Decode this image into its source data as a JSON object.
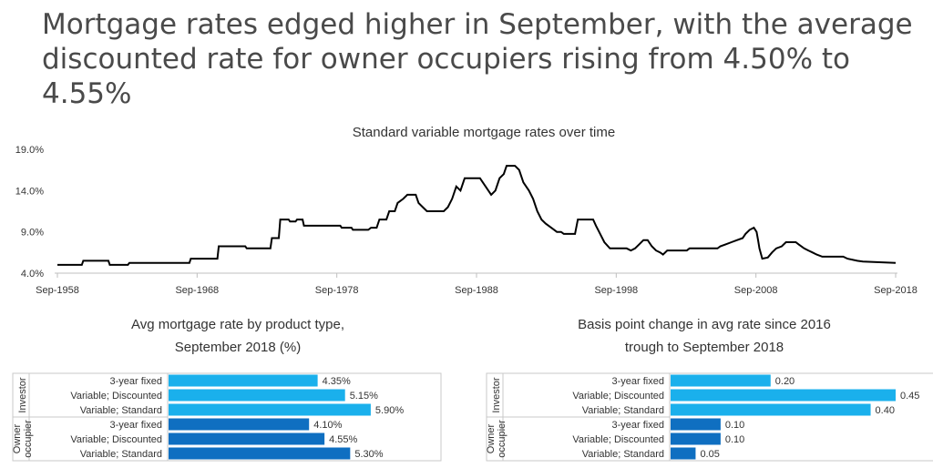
{
  "headline": "Mortgage rates edged higher in September, with the average discounted rate for owner occupiers rising from 4.50% to 4.55%",
  "chart_data": [
    {
      "type": "line",
      "title": "Standard variable mortgage rates over time",
      "x_ticks": [
        "Sep-1958",
        "Sep-1968",
        "Sep-1978",
        "Sep-1988",
        "Sep-1998",
        "Sep-2008",
        "Sep-2018"
      ],
      "y_ticks": [
        "4.0%",
        "9.0%",
        "14.0%",
        "19.0%"
      ],
      "ylim": [
        4.0,
        19.0
      ],
      "xlim": [
        1958.75,
        2018.75
      ],
      "grid": false,
      "color": "#000000",
      "series": [
        {
          "points": [
            [
              1958.75,
              5.0
            ],
            [
              1960.5,
              5.0
            ],
            [
              1960.6,
              5.5
            ],
            [
              1962.4,
              5.5
            ],
            [
              1962.5,
              5.0
            ],
            [
              1963.8,
              5.0
            ],
            [
              1963.9,
              5.25
            ],
            [
              1967.0,
              5.25
            ],
            [
              1967.1,
              5.25
            ],
            [
              1968.2,
              5.25
            ],
            [
              1968.3,
              5.75
            ],
            [
              1970.2,
              5.75
            ],
            [
              1970.3,
              7.25
            ],
            [
              1972.2,
              7.25
            ],
            [
              1972.3,
              7.0
            ],
            [
              1974.0,
              7.0
            ],
            [
              1974.1,
              8.25
            ],
            [
              1974.6,
              8.25
            ],
            [
              1974.7,
              10.5
            ],
            [
              1975.3,
              10.5
            ],
            [
              1975.4,
              10.25
            ],
            [
              1975.8,
              10.25
            ],
            [
              1975.9,
              10.5
            ],
            [
              1976.3,
              10.5
            ],
            [
              1976.4,
              9.75
            ],
            [
              1979.0,
              9.75
            ],
            [
              1979.1,
              9.5
            ],
            [
              1979.8,
              9.5
            ],
            [
              1979.9,
              9.25
            ],
            [
              1981.0,
              9.25
            ],
            [
              1981.2,
              9.5
            ],
            [
              1981.6,
              9.5
            ],
            [
              1981.8,
              10.5
            ],
            [
              1982.3,
              10.5
            ],
            [
              1982.5,
              11.5
            ],
            [
              1982.9,
              11.5
            ],
            [
              1983.1,
              12.5
            ],
            [
              1983.5,
              13.0
            ],
            [
              1983.8,
              13.5
            ],
            [
              1984.4,
              13.5
            ],
            [
              1984.6,
              12.5
            ],
            [
              1984.9,
              12.0
            ],
            [
              1985.2,
              11.5
            ],
            [
              1986.4,
              11.5
            ],
            [
              1986.7,
              12.0
            ],
            [
              1987.0,
              13.0
            ],
            [
              1987.3,
              14.5
            ],
            [
              1987.6,
              14.0
            ],
            [
              1987.9,
              15.5
            ],
            [
              1989.0,
              15.5
            ],
            [
              1989.2,
              15.0
            ],
            [
              1989.6,
              14.0
            ],
            [
              1989.8,
              13.5
            ],
            [
              1990.1,
              14.0
            ],
            [
              1990.4,
              15.5
            ],
            [
              1990.7,
              16.0
            ],
            [
              1990.9,
              17.0
            ],
            [
              1991.5,
              17.0
            ],
            [
              1991.8,
              16.5
            ],
            [
              1992.1,
              15.0
            ],
            [
              1992.5,
              14.0
            ],
            [
              1992.8,
              13.0
            ],
            [
              1993.1,
              11.5
            ],
            [
              1993.4,
              10.5
            ],
            [
              1993.7,
              10.0
            ],
            [
              1994.1,
              9.5
            ],
            [
              1994.5,
              9.0
            ],
            [
              1994.8,
              9.0
            ],
            [
              1995.0,
              8.75
            ],
            [
              1995.8,
              8.75
            ],
            [
              1996.0,
              10.5
            ],
            [
              1997.1,
              10.5
            ],
            [
              1997.3,
              9.75
            ],
            [
              1997.6,
              8.75
            ],
            [
              1997.9,
              7.75
            ],
            [
              1998.3,
              7.0
            ],
            [
              1999.5,
              7.0
            ],
            [
              1999.8,
              6.75
            ],
            [
              2000.1,
              7.0
            ],
            [
              2000.4,
              7.5
            ],
            [
              2000.7,
              8.0
            ],
            [
              2001.0,
              8.0
            ],
            [
              2001.3,
              7.25
            ],
            [
              2001.6,
              6.75
            ],
            [
              2001.9,
              6.5
            ],
            [
              2002.1,
              6.25
            ],
            [
              2002.4,
              6.75
            ],
            [
              2003.8,
              6.75
            ],
            [
              2004.0,
              7.0
            ],
            [
              2006.0,
              7.0
            ],
            [
              2006.2,
              7.25
            ],
            [
              2006.6,
              7.5
            ],
            [
              2007.0,
              7.75
            ],
            [
              2007.4,
              8.0
            ],
            [
              2007.8,
              8.25
            ],
            [
              2008.0,
              8.75
            ],
            [
              2008.3,
              9.25
            ],
            [
              2008.6,
              9.5
            ],
            [
              2008.8,
              9.0
            ],
            [
              2008.9,
              8.0
            ],
            [
              2009.0,
              7.0
            ],
            [
              2009.2,
              5.75
            ],
            [
              2009.6,
              5.9
            ],
            [
              2009.9,
              6.5
            ],
            [
              2010.2,
              7.0
            ],
            [
              2010.6,
              7.25
            ],
            [
              2010.9,
              7.75
            ],
            [
              2011.6,
              7.75
            ],
            [
              2011.8,
              7.5
            ],
            [
              2012.2,
              7.0
            ],
            [
              2012.5,
              6.75
            ],
            [
              2012.8,
              6.5
            ],
            [
              2013.1,
              6.25
            ],
            [
              2013.5,
              6.0
            ],
            [
              2015.0,
              6.0
            ],
            [
              2015.3,
              5.75
            ],
            [
              2016.0,
              5.5
            ],
            [
              2016.4,
              5.4
            ],
            [
              2018.75,
              5.25
            ]
          ]
        }
      ]
    },
    {
      "type": "bar",
      "orientation": "horizontal",
      "title": "Avg mortgage rate by product type, September 2018 (%)",
      "title_lines": [
        "Avg mortgage rate by product type,",
        "September 2018 (%)"
      ],
      "groups": [
        {
          "label": "Investor",
          "color": "#1ab0ec",
          "categories": [
            "3-year fixed",
            "Variable; Discounted",
            "Variable; Standard"
          ],
          "values": [
            4.35,
            5.15,
            5.9
          ],
          "labels": [
            "4.35%",
            "5.15%",
            "5.90%"
          ]
        },
        {
          "label": "Owner occupier",
          "label_lines": [
            "Owner",
            "occupier"
          ],
          "color": "#0f6fc1",
          "categories": [
            "3-year fixed",
            "Variable; Discounted",
            "Variable; Standard"
          ],
          "values": [
            4.1,
            4.55,
            5.3
          ],
          "labels": [
            "4.10%",
            "4.55%",
            "5.30%"
          ]
        }
      ],
      "xlim": [
        0,
        6.7
      ]
    },
    {
      "type": "bar",
      "orientation": "horizontal",
      "title": "Basis point change in avg rate since 2016 trough to September 2018",
      "title_lines": [
        "Basis point change in avg rate since 2016",
        "trough to September 2018"
      ],
      "groups": [
        {
          "label": "Investor",
          "color": "#1ab0ec",
          "categories": [
            "3-year fixed",
            "Variable; Discounted",
            "Variable; Standard"
          ],
          "values": [
            0.2,
            0.45,
            0.4
          ],
          "labels": [
            "0.20",
            "0.45",
            "0.40"
          ]
        },
        {
          "label": "Owner occupier",
          "label_lines": [
            "Owner",
            "occupier"
          ],
          "color": "#0f6fc1",
          "categories": [
            "3-year fixed",
            "Variable; Discounted",
            "Variable; Standard"
          ],
          "values": [
            0.1,
            0.1,
            0.05
          ],
          "labels": [
            "0.10",
            "0.10",
            "0.05"
          ]
        }
      ],
      "xlim": [
        0,
        0.45
      ]
    }
  ]
}
